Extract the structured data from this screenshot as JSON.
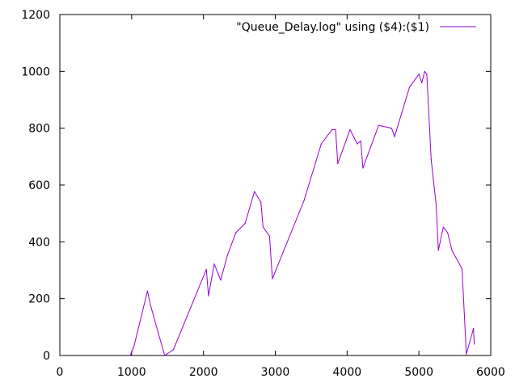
{
  "chart_data": {
    "type": "line",
    "title": "",
    "xlabel": "",
    "ylabel": "",
    "xlim": [
      0,
      6000
    ],
    "ylim": [
      0,
      1200
    ],
    "xticks": [
      0,
      1000,
      2000,
      3000,
      4000,
      5000,
      6000
    ],
    "yticks": [
      0,
      200,
      400,
      600,
      800,
      1000,
      1200
    ],
    "grid": false,
    "legend_position": "top-right",
    "series": [
      {
        "name": "\"Queue_Delay.log\" using ($4):($1)",
        "color": "#9400d3",
        "x": [
          980,
          1030,
          1220,
          1260,
          1370,
          1460,
          1580,
          2040,
          2070,
          2150,
          2240,
          2330,
          2450,
          2580,
          2710,
          2800,
          2830,
          2920,
          2960,
          3400,
          3640,
          3790,
          3840,
          3870,
          4040,
          4140,
          4190,
          4220,
          4440,
          4620,
          4660,
          4870,
          5000,
          5040,
          5080,
          5110,
          5170,
          5240,
          5270,
          5340,
          5400,
          5460,
          5600,
          5660,
          5760,
          5770
        ],
        "y": [
          0,
          30,
          227,
          180,
          80,
          0,
          20,
          303,
          210,
          322,
          265,
          350,
          432,
          465,
          577,
          540,
          452,
          420,
          270,
          545,
          745,
          795,
          795,
          675,
          795,
          745,
          755,
          660,
          810,
          800,
          770,
          945,
          990,
          960,
          1000,
          990,
          690,
          530,
          370,
          452,
          432,
          370,
          305,
          5,
          95,
          40
        ]
      }
    ]
  }
}
